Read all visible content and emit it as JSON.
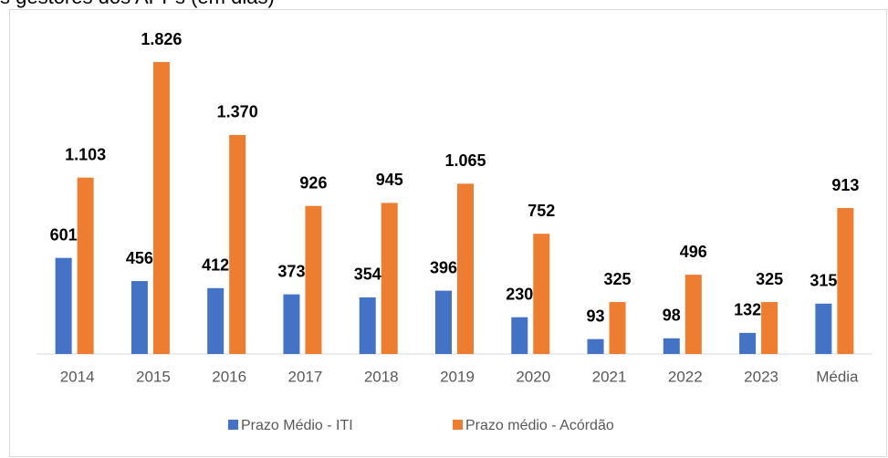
{
  "chart_data": {
    "type": "bar",
    "title": "s gestores dos APPs (em dias)",
    "categories": [
      "2014",
      "2015",
      "2016",
      "2017",
      "2018",
      "2019",
      "2020",
      "2021",
      "2022",
      "2023",
      "Média"
    ],
    "series": [
      {
        "name": "Prazo Médio - ITI",
        "color": "#4472c4",
        "values": [
          601,
          456,
          412,
          373,
          354,
          396,
          230,
          93,
          98,
          132,
          315
        ]
      },
      {
        "name": "Prazo médio - Acórdão",
        "color": "#ed7d31",
        "values": [
          1103,
          1826,
          1370,
          926,
          945,
          1065,
          752,
          325,
          496,
          325,
          913
        ],
        "value_labels": [
          "1.103",
          "1.826",
          "1.370",
          "926",
          "945",
          "1.065",
          "752",
          "325",
          "496",
          "325",
          "913"
        ]
      }
    ]
  }
}
